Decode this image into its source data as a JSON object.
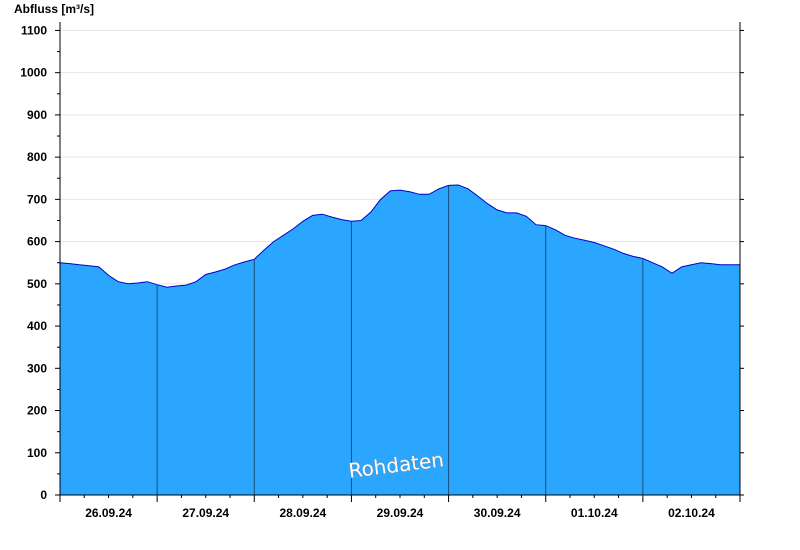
{
  "chart_data": {
    "type": "area",
    "ylabel": "Abfluss [m³/s]",
    "xlabel": "",
    "title": "",
    "ylim": [
      0,
      1120
    ],
    "yticks": [
      0,
      100,
      200,
      300,
      400,
      500,
      600,
      700,
      800,
      900,
      1000,
      1100
    ],
    "xlim": [
      0,
      7
    ],
    "x_unit": "days from 26.09.24 00:00",
    "day_labels": [
      "26.09.24",
      "27.09.24",
      "28.09.24",
      "29.09.24",
      "30.09.24",
      "01.10.24",
      "02.10.24"
    ],
    "watermark": "Rohdaten",
    "grid": "horizontal",
    "colors": {
      "fill": "#2aa6ff",
      "line": "#0000c8",
      "day_separator": "#1c4f7a",
      "grid": "#e6e6e6"
    },
    "series": [
      {
        "x": [
          0,
          0.1,
          0.2,
          0.3,
          0.4,
          0.5,
          0.6,
          0.7,
          0.8,
          0.9,
          1.0,
          1.1,
          1.2,
          1.3,
          1.4,
          1.5,
          1.6,
          1.7,
          1.8,
          1.9,
          2.0,
          2.1,
          2.2,
          2.3,
          2.4,
          2.5,
          2.6,
          2.7,
          2.8,
          2.9,
          3.0,
          3.1,
          3.2,
          3.3,
          3.4,
          3.5,
          3.6,
          3.7,
          3.8,
          3.9,
          4.0,
          4.1,
          4.2,
          4.3,
          4.4,
          4.5,
          4.6,
          4.7,
          4.8,
          4.9,
          5.0,
          5.1,
          5.2,
          5.3,
          5.4,
          5.5,
          5.6,
          5.7,
          5.8,
          5.9,
          6.0,
          6.1,
          6.2,
          6.3,
          6.4,
          6.5,
          6.6,
          6.7,
          6.8,
          6.9,
          7.0
        ],
        "values": [
          550,
          548,
          545,
          543,
          540,
          520,
          505,
          500,
          502,
          505,
          498,
          492,
          495,
          497,
          505,
          522,
          528,
          535,
          545,
          552,
          558,
          580,
          600,
          615,
          630,
          648,
          662,
          665,
          658,
          652,
          648,
          650,
          670,
          700,
          720,
          722,
          718,
          712,
          712,
          725,
          733,
          734,
          725,
          708,
          690,
          675,
          668,
          668,
          660,
          640,
          638,
          628,
          615,
          608,
          603,
          598,
          590,
          582,
          572,
          565,
          560,
          550,
          540,
          525,
          540,
          545,
          550,
          548,
          545,
          545,
          545
        ]
      }
    ]
  }
}
